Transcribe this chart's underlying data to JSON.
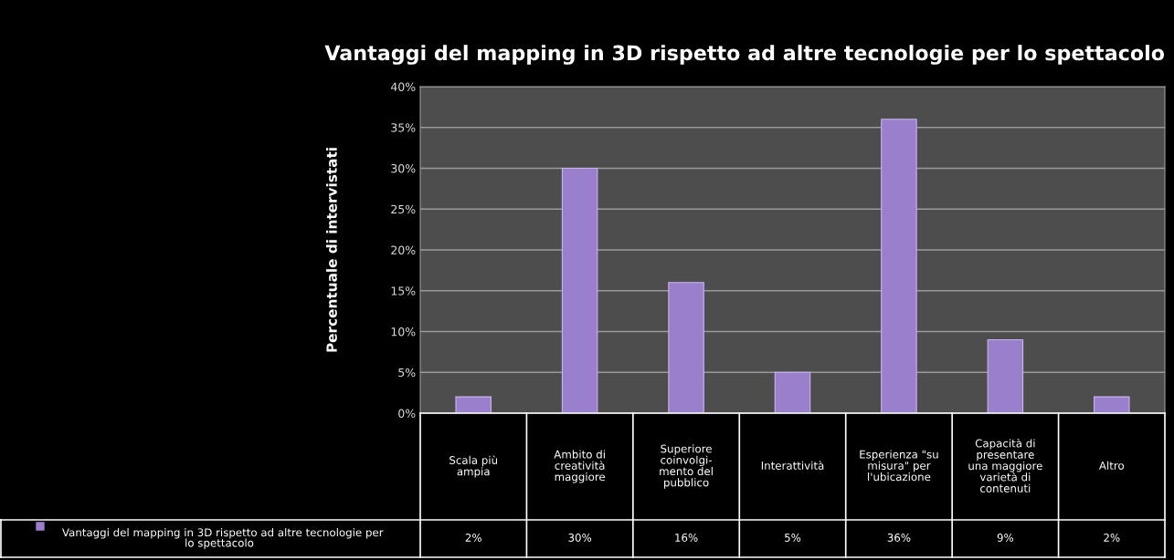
{
  "chart_data": {
    "type": "bar",
    "title": "Vantaggi del mapping in 3D rispetto ad altre tecnologie per lo spettacolo",
    "ylabel": "Percentuale di intervistati",
    "categories": [
      "Scala più\nampia",
      "Ambito di\ncreatività\nmaggiore",
      "Superiore\ncoinvolgi-\nmento del\npubblico",
      "Interattività",
      "Esperienza \"su\nmisura\" per\nl'ubicazione",
      "Capacità di\npresentare\nuna maggiore\nvarietà di\ncontenuti",
      "Altro"
    ],
    "series": [
      {
        "name": "Vantaggi del mapping in 3D rispetto ad altre tecnologie per\nlo spettacolo",
        "color": "#9a7fcc",
        "values": [
          2,
          30,
          16,
          5,
          36,
          9,
          2
        ],
        "value_labels": [
          "2%",
          "30%",
          "16%",
          "5%",
          "36%",
          "9%",
          "2%"
        ]
      }
    ],
    "ylim": [
      0,
      40
    ],
    "yticks": [
      {
        "value": 0,
        "label": "0%"
      },
      {
        "value": 5,
        "label": "5%"
      },
      {
        "value": 10,
        "label": "10%"
      },
      {
        "value": 15,
        "label": "15%"
      },
      {
        "value": 20,
        "label": "20%"
      },
      {
        "value": 25,
        "label": "25%"
      },
      {
        "value": 30,
        "label": "30%"
      },
      {
        "value": 35,
        "label": "35%"
      },
      {
        "value": 40,
        "label": "40%"
      }
    ],
    "grid": "y",
    "legend": "bottom"
  }
}
